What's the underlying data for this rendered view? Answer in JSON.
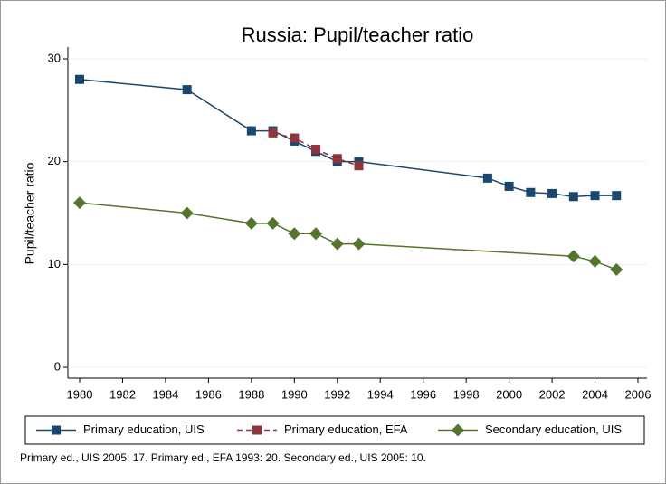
{
  "chart_data": {
    "type": "line",
    "title": "Russia: Pupil/teacher ratio",
    "ylabel": "Pupil/teacher ratio",
    "note": "Primary ed., UIS 2005: 17. Primary ed., EFA 1993: 20. Secondary ed., UIS 2005: 10.",
    "xlim": [
      1980,
      2006
    ],
    "xticks": [
      1980,
      1982,
      1984,
      1986,
      1988,
      1990,
      1992,
      1994,
      1996,
      1998,
      2000,
      2002,
      2004,
      2006
    ],
    "ylim": [
      0,
      30
    ],
    "yticks": [
      0,
      10,
      20,
      30
    ],
    "grid": true,
    "legend": "bottom",
    "series": [
      {
        "name": "Primary education, UIS",
        "color": "#1a476f",
        "marker": "square",
        "dash": false,
        "x": [
          1980,
          1985,
          1988,
          1989,
          1990,
          1991,
          1992,
          1993,
          1999,
          2000,
          2001,
          2002,
          2003,
          2004,
          2005
        ],
        "values": [
          28,
          27,
          23,
          23,
          22,
          21,
          20,
          20,
          18.4,
          17.6,
          17,
          16.9,
          16.6,
          16.7,
          16.7
        ]
      },
      {
        "name": "Primary education, EFA",
        "color": "#90353b",
        "marker": "square",
        "dash": true,
        "x": [
          1989,
          1990,
          1991,
          1992,
          1993
        ],
        "values": [
          22.8,
          22.3,
          21.2,
          20.3,
          19.6
        ]
      },
      {
        "name": "Secondary education, UIS",
        "color": "#55752f",
        "marker": "diamond",
        "dash": false,
        "x": [
          1980,
          1985,
          1988,
          1989,
          1990,
          1991,
          1992,
          1993,
          2003,
          2004,
          2005
        ],
        "values": [
          16,
          15,
          14,
          14,
          13,
          13,
          12,
          12,
          10.8,
          10.3,
          9.5
        ]
      }
    ]
  }
}
